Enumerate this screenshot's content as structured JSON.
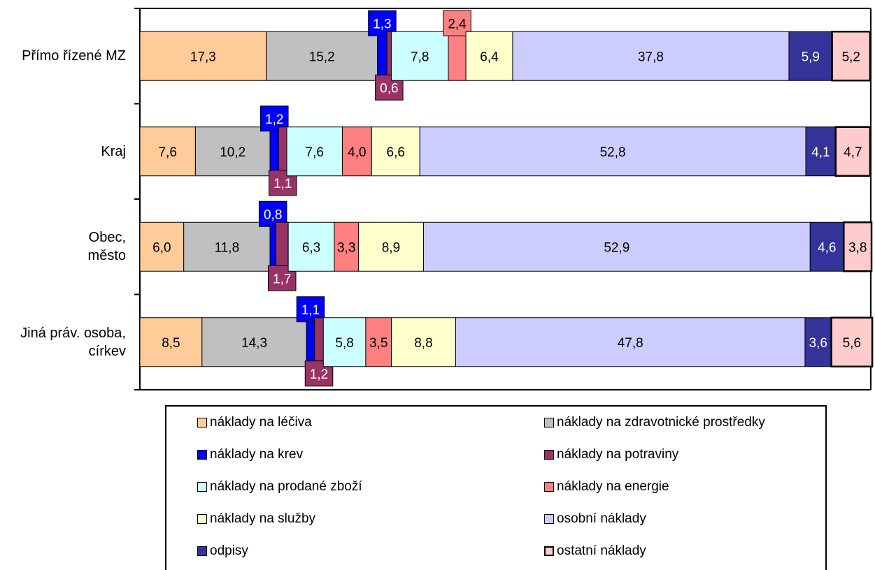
{
  "chart_data": {
    "type": "bar",
    "orientation": "horizontal",
    "stacked": "percent",
    "categories": [
      "Přímo řízené MZ",
      "Kraj",
      "Obec, město",
      "Jiná práv. osoba, církev"
    ],
    "xlim": [
      0,
      100
    ],
    "grid": false,
    "legend_position": "bottom",
    "series": [
      {
        "name": "náklady na léčiva",
        "color": "#FFCC99",
        "values": [
          17.3,
          7.6,
          6.0,
          8.5
        ],
        "labels": [
          "17,3",
          "7,6",
          "6,0",
          "8,5"
        ]
      },
      {
        "name": "náklady na zdravotnické prostředky",
        "color": "#C0C0C0",
        "values": [
          15.2,
          10.2,
          11.8,
          14.3
        ],
        "labels": [
          "15,2",
          "10,2",
          "11,8",
          "14,3"
        ]
      },
      {
        "name": "náklady na krev",
        "color": "#0000FF",
        "values": [
          1.3,
          1.2,
          0.8,
          1.1
        ],
        "labels": [
          "1,3",
          "1,2",
          "0,8",
          "1,1"
        ]
      },
      {
        "name": "náklady na potraviny",
        "color": "#993366",
        "values": [
          0.6,
          1.1,
          1.7,
          1.2
        ],
        "labels": [
          "0,6",
          "1,1",
          "1,7",
          "1,2"
        ]
      },
      {
        "name": "náklady na prodané zboží",
        "color": "#CCFFFF",
        "values": [
          7.8,
          7.6,
          6.3,
          5.8
        ],
        "labels": [
          "7,8",
          "7,6",
          "6,3",
          "5,8"
        ]
      },
      {
        "name": "náklady na energie",
        "color": "#FF8080",
        "values": [
          2.4,
          4.0,
          3.3,
          3.5
        ],
        "labels": [
          "2,4",
          "4,0",
          "3,3",
          "3,5"
        ]
      },
      {
        "name": "náklady na služby",
        "color": "#FFFFCC",
        "values": [
          6.4,
          6.6,
          8.9,
          8.8
        ],
        "labels": [
          "6,4",
          "6,6",
          "8,9",
          "8,8"
        ]
      },
      {
        "name": "osobní náklady",
        "color": "#CCCCFF",
        "values": [
          37.8,
          52.8,
          52.9,
          47.8
        ],
        "labels": [
          "37,8",
          "52,8",
          "52,9",
          "47,8"
        ]
      },
      {
        "name": "odpisy",
        "color": "#333399",
        "values": [
          5.9,
          4.1,
          4.6,
          3.6
        ],
        "labels": [
          "5,9",
          "4,1",
          "4,6",
          "3,6"
        ]
      },
      {
        "name": "ostatní náklady",
        "color": "#FFCCCC",
        "values": [
          5.2,
          4.7,
          3.8,
          5.6
        ],
        "labels": [
          "5,2",
          "4,7",
          "3,8",
          "5,6"
        ]
      }
    ]
  }
}
